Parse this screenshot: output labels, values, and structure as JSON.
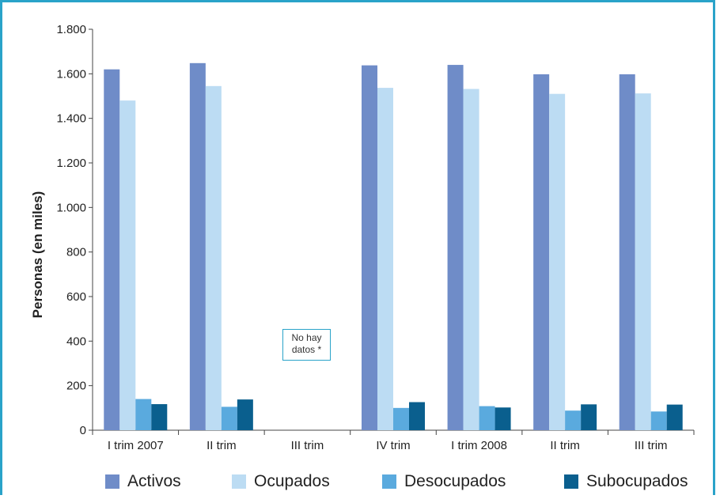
{
  "chart_data": {
    "type": "bar",
    "ylabel": "Personas (en miles)",
    "xlabel": "",
    "ylim": [
      0,
      1800
    ],
    "yticks": [
      0,
      200,
      400,
      600,
      800,
      1000,
      1200,
      1400,
      1600,
      1800
    ],
    "ytick_labels": [
      "0",
      "200",
      "400",
      "600",
      "800",
      "1.000",
      "1.200",
      "1.400",
      "1.600",
      "1.800"
    ],
    "categories": [
      "I trim 2007",
      "II trim",
      "III trim",
      "IV trim",
      "I trim 2008",
      "II trim",
      "III trim"
    ],
    "series": [
      {
        "name": "Activos",
        "color": "#6f8cc8",
        "values": [
          1620,
          1648,
          null,
          1638,
          1640,
          1598,
          1598
        ]
      },
      {
        "name": "Ocupados",
        "color": "#bcdcf3",
        "values": [
          1480,
          1545,
          null,
          1537,
          1532,
          1510,
          1512
        ]
      },
      {
        "name": "Desocupados",
        "color": "#5aaade",
        "values": [
          140,
          105,
          null,
          100,
          108,
          88,
          84
        ]
      },
      {
        "name": "Subocupados",
        "color": "#0a5f8e",
        "values": [
          117,
          138,
          null,
          126,
          102,
          116,
          115
        ]
      }
    ],
    "annotations": [
      {
        "category": "III trim",
        "text_line1": "No hay",
        "text_line2": "datos *"
      }
    ],
    "legend_position": "bottom",
    "grid": false
  }
}
